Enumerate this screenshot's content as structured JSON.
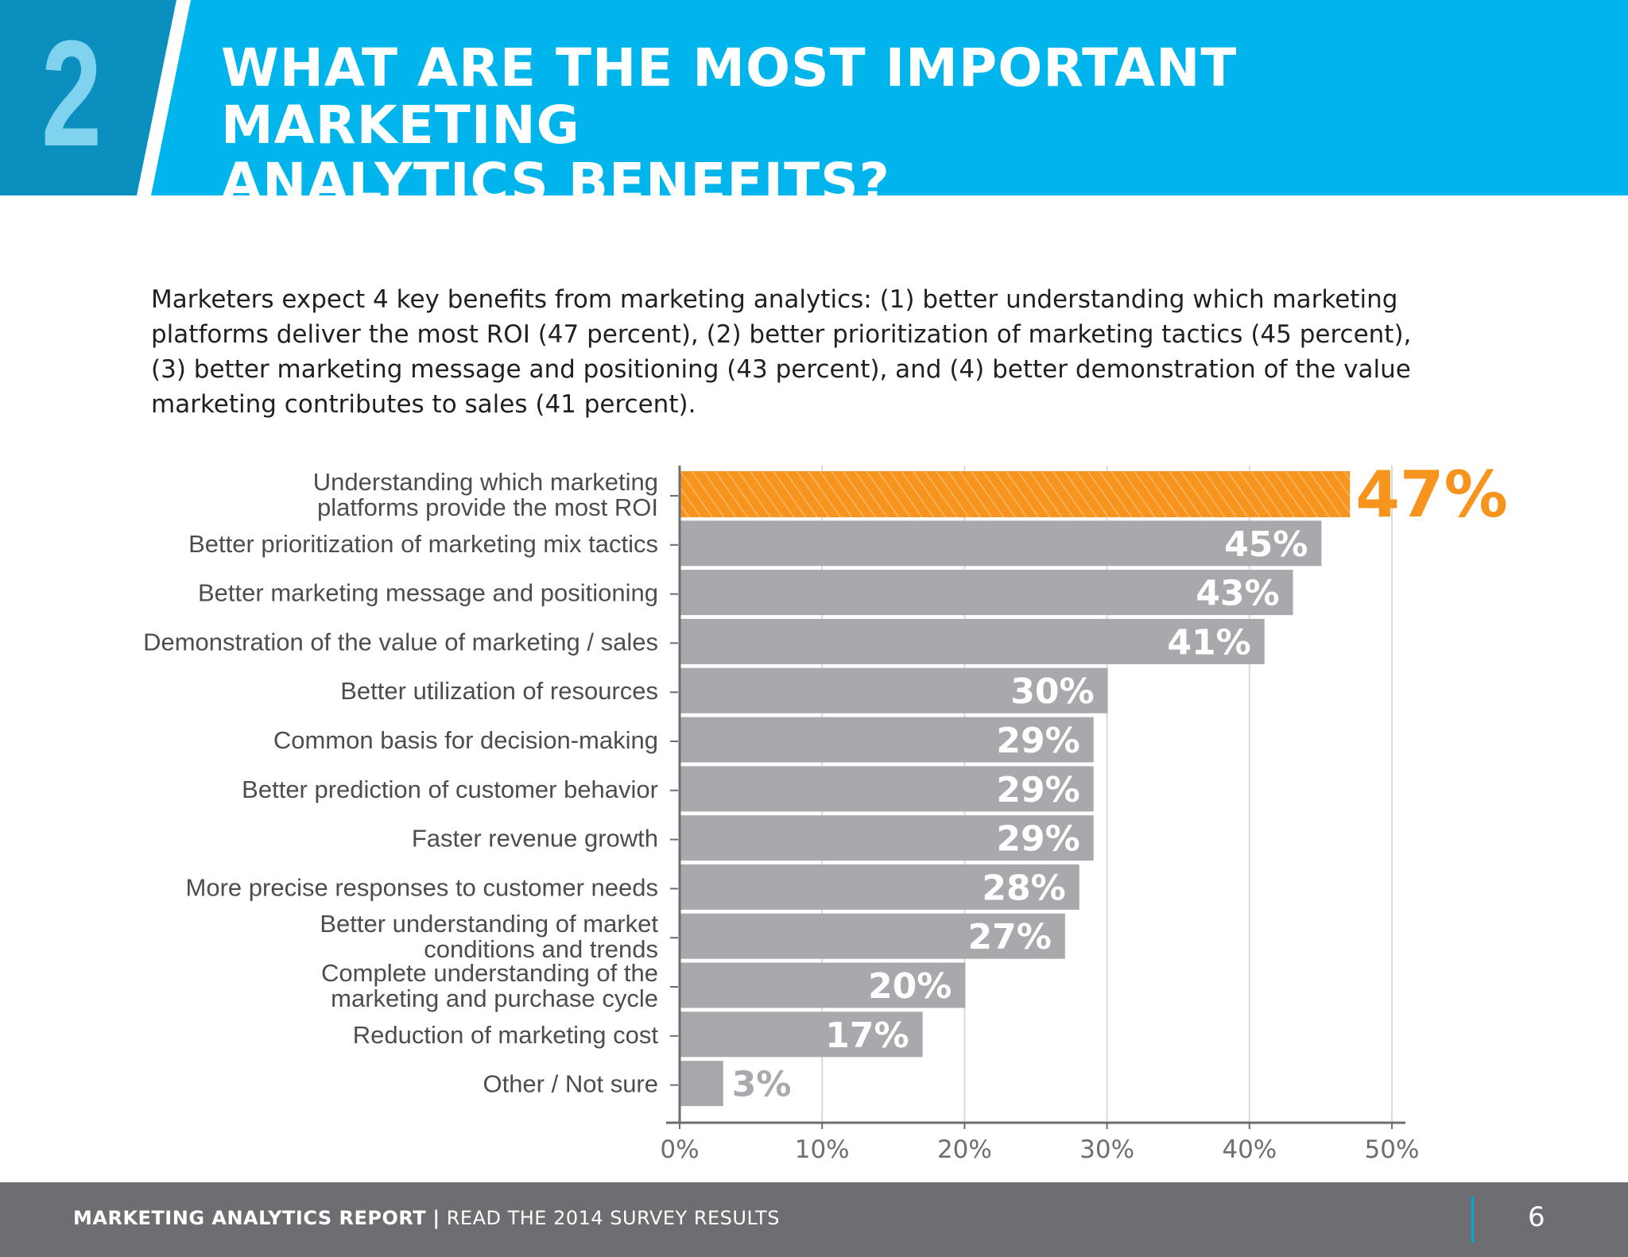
{
  "header": {
    "number": "2",
    "title_lines": [
      "WHAT ARE THE MOST IMPORTANT MARKETING",
      "ANALYTICS BENEFITS?"
    ],
    "background_color": "#00b5ec",
    "number_block_color": "#0b8fbf"
  },
  "intro": {
    "lines": [
      "Marketers expect 4 key benefits from marketing analytics: (1) better understanding which marketing",
      "platforms deliver the most ROI (47 percent), (2) better prioritization of marketing tactics (45 percent),",
      "(3) better marketing message and positioning (43 percent), and (4) better demonstration of the value",
      "marketing contributes to sales (41 percent)."
    ]
  },
  "chart_data": {
    "type": "bar",
    "orientation": "horizontal",
    "title": "",
    "xlabel": "",
    "ylabel": "",
    "xlim": [
      0,
      50
    ],
    "xticks": [
      0,
      10,
      20,
      30,
      40,
      50
    ],
    "xtick_labels": [
      "0%",
      "10%",
      "20%",
      "30%",
      "40%",
      "50%"
    ],
    "grid": true,
    "categories": [
      [
        "Understanding which marketing",
        "platforms provide the most ROI"
      ],
      [
        "Better prioritization of marketing mix tactics"
      ],
      [
        "Better marketing message and positioning"
      ],
      [
        "Demonstration of the value of marketing / sales"
      ],
      [
        "Better utilization of resources"
      ],
      [
        "Common basis for decision-making"
      ],
      [
        "Better prediction of customer behavior"
      ],
      [
        "Faster revenue growth"
      ],
      [
        "More precise responses to customer needs"
      ],
      [
        "Better understanding of market",
        "conditions and trends"
      ],
      [
        "Complete understanding of the",
        "marketing and purchase cycle"
      ],
      [
        "Reduction of marketing cost"
      ],
      [
        "Other / Not sure"
      ]
    ],
    "values": [
      47,
      45,
      43,
      41,
      30,
      29,
      29,
      29,
      28,
      27,
      20,
      17,
      3
    ],
    "value_labels": [
      "47%",
      "45%",
      "43%",
      "41%",
      "30%",
      "29%",
      "29%",
      "29%",
      "28%",
      "27%",
      "20%",
      "17%",
      "3%"
    ],
    "highlight_index": 0,
    "colors": {
      "bar": "#a7a9ac",
      "highlight": "#f7941d",
      "label_on_bar": "#ffffff",
      "axis": "#6d6e71",
      "grid": "#d9d9d9",
      "category_text": "#4d4d4f"
    }
  },
  "footer": {
    "report_title": "MARKETING ANALYTICS REPORT",
    "separator": "|",
    "subtitle": "READ THE 2014 SURVEY RESULTS",
    "page_number": "6"
  }
}
